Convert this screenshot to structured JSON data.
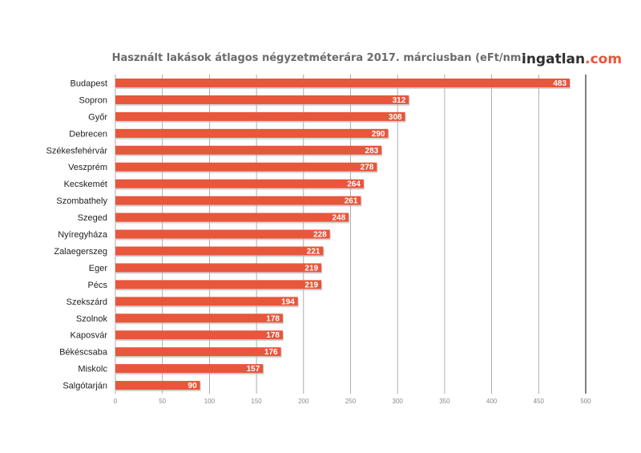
{
  "brand": {
    "name_main": "ingatlan",
    "name_suffix": ".com"
  },
  "chart_data": {
    "type": "bar",
    "orientation": "horizontal",
    "title": "Használt lakások átlagos négyzetméterára 2017. márciusban (eFt/nm)",
    "xlabel": "",
    "ylabel": "",
    "categories": [
      "Budapest",
      "Sopron",
      "Győr",
      "Debrecen",
      "Székesfehérvár",
      "Veszprém",
      "Kecskemét",
      "Szombathely",
      "Szeged",
      "Nyíregyháza",
      "Zalaegerszeg",
      "Eger",
      "Pécs",
      "Szekszárd",
      "Szolnok",
      "Kaposvár",
      "Békéscsaba",
      "Miskolc",
      "Salgótarján"
    ],
    "values": [
      483,
      312,
      308,
      290,
      283,
      278,
      264,
      261,
      248,
      228,
      221,
      219,
      219,
      194,
      178,
      178,
      176,
      157,
      90
    ],
    "xlim": [
      0,
      500
    ],
    "xticks": [
      0,
      50,
      100,
      150,
      200,
      250,
      300,
      350,
      400,
      450,
      500
    ],
    "grid": "vertical",
    "legend": "none",
    "bar_color": "#e8563c"
  }
}
